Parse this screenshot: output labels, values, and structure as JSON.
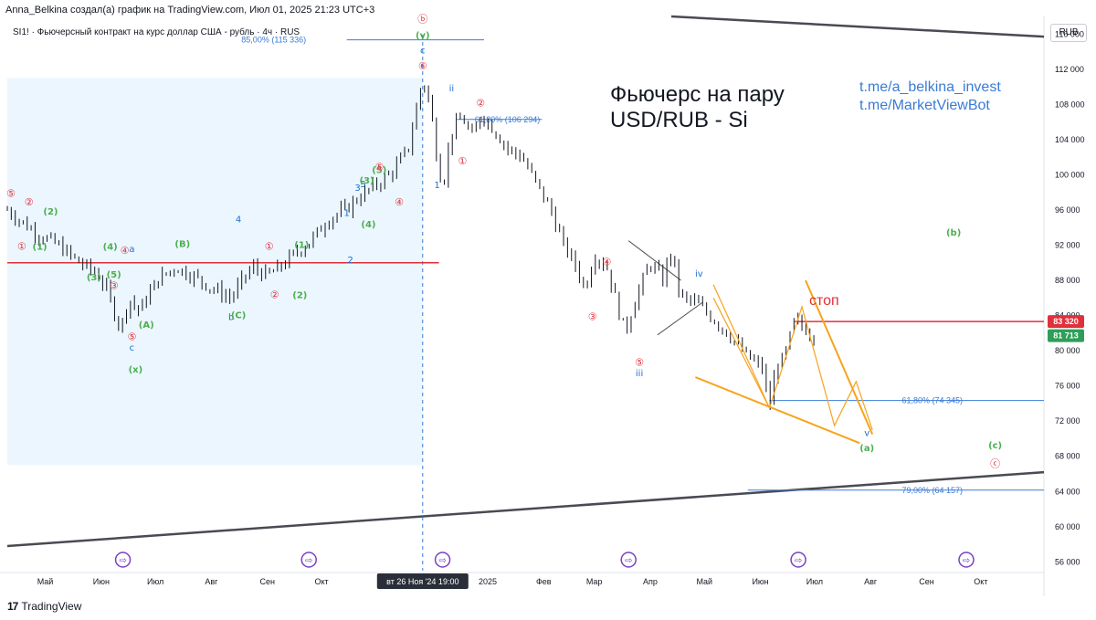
{
  "header": {
    "attribution": "Anna_Belkina создал(а) график на TradingView.com, Июл 01, 2025 21:23 UTC+3",
    "symbol": "SI1! · Фьючерсный контракт на курс доллар США - рубль · 4ч · RUS"
  },
  "title_lines": [
    "Фьючерс на пару",
    "USD/RUB - Si"
  ],
  "links": [
    "t.me/a_belkina_invest",
    "t.me/MarketViewBot"
  ],
  "currency_button": "RUB",
  "footer": {
    "logo": "17",
    "brand": "TradingView"
  },
  "colors": {
    "candles": "#131722",
    "red_line": "#e0303a",
    "fib": "#3a7bd5",
    "orange": "#f7a31c",
    "green_label": "#4caf50",
    "blue_label": "#1e6fd0",
    "trend": "#4a4a52",
    "highlight": "#e3f2fd",
    "price_badge_red": "#e0303a",
    "price_badge_green": "#2e9e58",
    "time_badge": "#2a2e39",
    "event_icon": "#7b3fc4"
  },
  "chart_data": {
    "type": "candlestick",
    "ylim": [
      55000,
      118000
    ],
    "x_start": "2024-04-10",
    "x_end": "2025-11-05",
    "y_ticks": [
      "56 000",
      "60 000",
      "64 000",
      "68 000",
      "72 000",
      "76 000",
      "80 000",
      "84 000",
      "88 000",
      "92 000",
      "96 000",
      "100 000",
      "104 000",
      "108 000",
      "112 000",
      "116 000"
    ],
    "y_tick_values": [
      56000,
      60000,
      64000,
      68000,
      72000,
      76000,
      80000,
      84000,
      88000,
      92000,
      96000,
      100000,
      104000,
      108000,
      112000,
      116000
    ],
    "x_ticks": [
      {
        "label": "Май",
        "date": "2024-05-01"
      },
      {
        "label": "Июн",
        "date": "2024-06-01"
      },
      {
        "label": "Июл",
        "date": "2024-07-01"
      },
      {
        "label": "Авг",
        "date": "2024-08-01"
      },
      {
        "label": "Сен",
        "date": "2024-09-01"
      },
      {
        "label": "Окт",
        "date": "2024-10-01"
      },
      {
        "label": "2025",
        "date": "2025-01-01"
      },
      {
        "label": "Фев",
        "date": "2025-02-01"
      },
      {
        "label": "Мар",
        "date": "2025-03-01"
      },
      {
        "label": "Апр",
        "date": "2025-04-01"
      },
      {
        "label": "Май",
        "date": "2025-05-01"
      },
      {
        "label": "Июн",
        "date": "2025-06-01"
      },
      {
        "label": "Июл",
        "date": "2025-07-01"
      },
      {
        "label": "Авг",
        "date": "2025-08-01"
      },
      {
        "label": "Сен",
        "date": "2025-09-01"
      },
      {
        "label": "Окт",
        "date": "2025-10-01"
      }
    ],
    "crosshair": {
      "date": "2024-11-26",
      "label": "вт 26 Ноя '24   19:00"
    },
    "price_badges": [
      {
        "value": 83320,
        "label": "83 320",
        "kind": "red"
      },
      {
        "value": 81713,
        "label": "81 713",
        "kind": "green"
      }
    ],
    "price_path": [
      [
        "2024-04-10",
        96000
      ],
      [
        "2024-04-25",
        93500
      ],
      [
        "2024-05-08",
        92000
      ],
      [
        "2024-05-20",
        90000
      ],
      [
        "2024-05-28",
        89000
      ],
      [
        "2024-06-03",
        87500
      ],
      [
        "2024-06-08",
        84500
      ],
      [
        "2024-06-12",
        82500
      ],
      [
        "2024-06-16",
        86000
      ],
      [
        "2024-06-22",
        84500
      ],
      [
        "2024-07-02",
        88000
      ],
      [
        "2024-07-12",
        89500
      ],
      [
        "2024-07-22",
        88500
      ],
      [
        "2024-08-02",
        87000
      ],
      [
        "2024-08-12",
        86000
      ],
      [
        "2024-08-18",
        88000
      ],
      [
        "2024-08-24",
        89500
      ],
      [
        "2024-09-01",
        88500
      ],
      [
        "2024-09-08",
        89500
      ],
      [
        "2024-09-16",
        91000
      ],
      [
        "2024-09-25",
        92500
      ],
      [
        "2024-10-05",
        95000
      ],
      [
        "2024-10-14",
        96000
      ],
      [
        "2024-10-22",
        97500
      ],
      [
        "2024-11-01",
        99000
      ],
      [
        "2024-11-10",
        100500
      ],
      [
        "2024-11-18",
        103000
      ],
      [
        "2024-11-26",
        111000
      ],
      [
        "2024-11-30",
        108000
      ],
      [
        "2024-12-04",
        102000
      ],
      [
        "2024-12-07",
        98500
      ],
      [
        "2024-12-12",
        105000
      ],
      [
        "2024-12-18",
        106500
      ],
      [
        "2024-12-24",
        104000
      ],
      [
        "2024-12-28",
        107000
      ],
      [
        "2025-01-05",
        105000
      ],
      [
        "2025-01-12",
        103000
      ],
      [
        "2025-01-20",
        102000
      ],
      [
        "2025-01-28",
        99000
      ],
      [
        "2025-02-05",
        96000
      ],
      [
        "2025-02-12",
        92000
      ],
      [
        "2025-02-18",
        90000
      ],
      [
        "2025-02-24",
        87000
      ],
      [
        "2025-03-01",
        91000
      ],
      [
        "2025-03-08",
        89500
      ],
      [
        "2025-03-14",
        85000
      ],
      [
        "2025-03-18",
        82000
      ],
      [
        "2025-03-24",
        86000
      ],
      [
        "2025-04-01",
        90000
      ],
      [
        "2025-04-08",
        88000
      ],
      [
        "2025-04-12",
        91500
      ],
      [
        "2025-04-18",
        86000
      ],
      [
        "2025-04-26",
        85500
      ],
      [
        "2025-05-04",
        84000
      ],
      [
        "2025-05-14",
        82000
      ],
      [
        "2025-05-24",
        79500
      ],
      [
        "2025-06-02",
        78000
      ],
      [
        "2025-06-06",
        73500
      ],
      [
        "2025-06-10",
        78500
      ],
      [
        "2025-06-14",
        79000
      ],
      [
        "2025-06-20",
        83500
      ],
      [
        "2025-06-26",
        82500
      ],
      [
        "2025-07-01",
        81700
      ]
    ],
    "horizontal_levels": [
      {
        "value": 90000,
        "from": "2024-04-10",
        "to": "2024-12-05",
        "kind": "red"
      },
      {
        "value": 83320,
        "from": "2025-06-20",
        "to": "2025-11-05",
        "kind": "red"
      }
    ],
    "fib_levels": [
      {
        "label": "85,00% (115 336)",
        "value": 115336,
        "from": "2024-10-15",
        "to": "2024-12-30"
      },
      {
        "label": "61,80% (106 294)",
        "value": 106294,
        "from": "2024-12-15",
        "to": "2025-01-31"
      },
      {
        "label": "61,80% (74 345)",
        "value": 74345,
        "from": "2025-06-06",
        "to": "2025-11-05"
      },
      {
        "label": "79,00% (64 157)",
        "value": 64157,
        "from": "2025-05-25",
        "to": "2025-11-05"
      }
    ],
    "wave_labels": [
      {
        "t": "⑤",
        "date": "2024-04-12",
        "v": 97500,
        "c": "red"
      },
      {
        "t": "②",
        "date": "2024-04-22",
        "v": 96500,
        "c": "red"
      },
      {
        "t": "(2)",
        "date": "2024-05-04",
        "v": 95500,
        "c": "green"
      },
      {
        "t": "①",
        "date": "2024-04-18",
        "v": 91500,
        "c": "red"
      },
      {
        "t": "(1)",
        "date": "2024-04-28",
        "v": 91500,
        "c": "green"
      },
      {
        "t": "(3)",
        "date": "2024-05-28",
        "v": 88000,
        "c": "green"
      },
      {
        "t": "(4)",
        "date": "2024-06-06",
        "v": 91500,
        "c": "green"
      },
      {
        "t": "④",
        "date": "2024-06-14",
        "v": 91000,
        "c": "red"
      },
      {
        "t": "a",
        "date": "2024-06-18",
        "v": 91200,
        "c": "blue"
      },
      {
        "t": "③",
        "date": "2024-06-08",
        "v": 87000,
        "c": "red"
      },
      {
        "t": "(5)",
        "date": "2024-06-08",
        "v": 88300,
        "c": "green"
      },
      {
        "t": "(A)",
        "date": "2024-06-26",
        "v": 82600,
        "c": "green"
      },
      {
        "t": "⑤",
        "date": "2024-06-18",
        "v": 81200,
        "c": "red"
      },
      {
        "t": "c",
        "date": "2024-06-18",
        "v": 80000,
        "c": "blue"
      },
      {
        "t": "(x)",
        "date": "2024-06-20",
        "v": 77500,
        "c": "green"
      },
      {
        "t": "(B)",
        "date": "2024-07-16",
        "v": 91800,
        "c": "green"
      },
      {
        "t": "4",
        "date": "2024-08-16",
        "v": 94600,
        "c": "blue"
      },
      {
        "t": "b",
        "date": "2024-08-12",
        "v": 83500,
        "c": "blue"
      },
      {
        "t": "(C)",
        "date": "2024-08-16",
        "v": 83700,
        "c": "green"
      },
      {
        "t": "①",
        "date": "2024-09-02",
        "v": 91500,
        "c": "red"
      },
      {
        "t": "(1)",
        "date": "2024-09-20",
        "v": 91700,
        "c": "green"
      },
      {
        "t": "②",
        "date": "2024-09-05",
        "v": 86000,
        "c": "red"
      },
      {
        "t": "(2)",
        "date": "2024-09-19",
        "v": 86000,
        "c": "green"
      },
      {
        "t": "1",
        "date": "2024-10-15",
        "v": 95300,
        "c": "blue"
      },
      {
        "t": "2",
        "date": "2024-10-17",
        "v": 90000,
        "c": "blue"
      },
      {
        "t": "3",
        "date": "2024-10-21",
        "v": 98200,
        "c": "blue"
      },
      {
        "t": "5",
        "date": "2024-10-24",
        "v": 98600,
        "c": "blue"
      },
      {
        "t": "(3)",
        "date": "2024-10-26",
        "v": 99000,
        "c": "green"
      },
      {
        "t": "(4)",
        "date": "2024-10-27",
        "v": 94000,
        "c": "green"
      },
      {
        "t": "(5)",
        "date": "2024-11-02",
        "v": 100200,
        "c": "green"
      },
      {
        "t": "⑤",
        "date": "2024-11-02",
        "v": 100500,
        "c": "red"
      },
      {
        "t": "④",
        "date": "2024-11-13",
        "v": 96500,
        "c": "red"
      },
      {
        "t": "ⓑ",
        "date": "2024-11-26",
        "v": 117300,
        "c": "red"
      },
      {
        "t": "(y)",
        "date": "2024-11-26",
        "v": 115500,
        "c": "green"
      },
      {
        "t": "c",
        "date": "2024-11-26",
        "v": 113800,
        "c": "blue"
      },
      {
        "t": "⑥",
        "date": "2024-11-26",
        "v": 112000,
        "c": "red"
      },
      {
        "t": "ii",
        "date": "2024-12-12",
        "v": 109500,
        "c": "blue"
      },
      {
        "t": "1",
        "date": "2024-12-04",
        "v": 98500,
        "c": "blue"
      },
      {
        "t": "②",
        "date": "2024-12-28",
        "v": 107800,
        "c": "red"
      },
      {
        "t": "①",
        "date": "2024-12-18",
        "v": 101200,
        "c": "red"
      },
      {
        "t": "④",
        "date": "2025-03-08",
        "v": 89700,
        "c": "red"
      },
      {
        "t": "③",
        "date": "2025-02-28",
        "v": 83500,
        "c": "red"
      },
      {
        "t": "⑤",
        "date": "2025-03-26",
        "v": 78300,
        "c": "red"
      },
      {
        "t": "iii",
        "date": "2025-03-26",
        "v": 77100,
        "c": "blue"
      },
      {
        "t": "iv",
        "date": "2025-04-28",
        "v": 88400,
        "c": "blue"
      },
      {
        "t": "(b)",
        "date": "2025-09-16",
        "v": 93100,
        "c": "green"
      },
      {
        "t": "v",
        "date": "2025-07-30",
        "v": 70300,
        "c": "blue"
      },
      {
        "t": "(a)",
        "date": "2025-07-30",
        "v": 68600,
        "c": "green"
      },
      {
        "t": "(c)",
        "date": "2025-10-09",
        "v": 68900,
        "c": "green"
      },
      {
        "t": "ⓒ",
        "date": "2025-10-09",
        "v": 66800,
        "c": "red"
      }
    ],
    "annotation_text": {
      "t": "стоп",
      "date": "2025-06-28",
      "v": 85200
    },
    "event_icon_dates": [
      "2024-06-13",
      "2024-09-24",
      "2024-12-07",
      "2025-03-20",
      "2025-06-22",
      "2025-09-23"
    ]
  }
}
